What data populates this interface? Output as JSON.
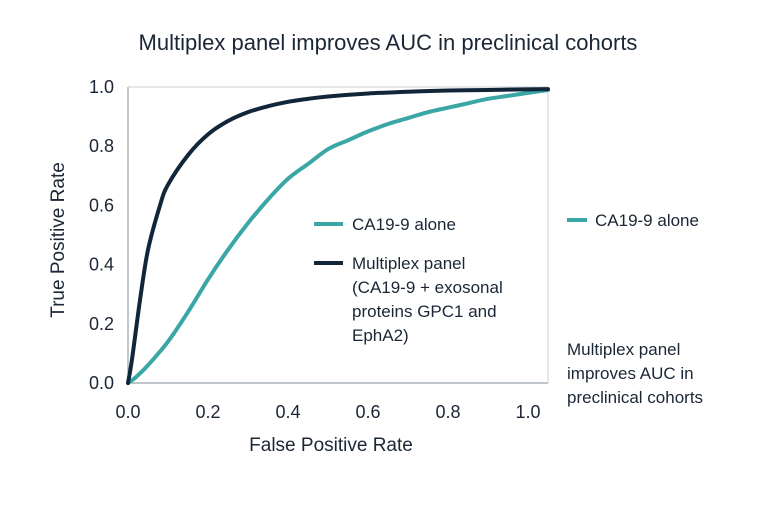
{
  "chart_data": {
    "type": "line",
    "title": "Multiplex panel improves AUC in preclinical cohorts",
    "xlabel": "False Positive Rate",
    "ylabel": "True Positive Rate",
    "xlim": [
      0,
      1.05
    ],
    "ylim": [
      0,
      1.0
    ],
    "x_ticks": [
      "0.0",
      "0.2",
      "0.4",
      "0.6",
      "0.8",
      "1.0"
    ],
    "y_ticks": [
      "0.0",
      "0.2",
      "0.4",
      "0.6",
      "0.8",
      "1.0"
    ],
    "grid": false,
    "legend": {
      "placement": "center",
      "entries": [
        {
          "label": "CA19-9 alone",
          "color": "#3aa6a6"
        },
        {
          "label_lines": [
            "Multiplex panel",
            "(CA19-9 + exosonal",
            "proteins GPC1 and",
            "EphA2)"
          ],
          "color": "#12263a"
        }
      ]
    },
    "side_legend": {
      "label": "CA19-9 alone",
      "color": "#3aa6a6"
    },
    "side_note_lines": [
      "Multiplex panel",
      "improves AUC in",
      "preclinical cohorts"
    ],
    "series": [
      {
        "name": "CA19-9 alone",
        "color": "#3aa6a6",
        "x": [
          0,
          0.02,
          0.05,
          0.1,
          0.15,
          0.2,
          0.25,
          0.3,
          0.35,
          0.4,
          0.45,
          0.5,
          0.55,
          0.6,
          0.65,
          0.7,
          0.75,
          0.8,
          0.85,
          0.9,
          0.95,
          1.0,
          1.05
        ],
        "y": [
          0,
          0.02,
          0.06,
          0.14,
          0.24,
          0.35,
          0.45,
          0.54,
          0.62,
          0.69,
          0.74,
          0.79,
          0.82,
          0.85,
          0.875,
          0.895,
          0.915,
          0.93,
          0.945,
          0.96,
          0.97,
          0.98,
          0.99
        ]
      },
      {
        "name": "Multiplex panel",
        "color": "#12263a",
        "x": [
          0,
          0.01,
          0.03,
          0.05,
          0.08,
          0.1,
          0.15,
          0.2,
          0.25,
          0.3,
          0.35,
          0.4,
          0.45,
          0.5,
          0.6,
          0.7,
          0.8,
          0.9,
          1.0,
          1.05
        ],
        "y": [
          0,
          0.08,
          0.28,
          0.45,
          0.6,
          0.67,
          0.77,
          0.84,
          0.885,
          0.915,
          0.935,
          0.95,
          0.96,
          0.968,
          0.978,
          0.984,
          0.988,
          0.99,
          0.992,
          0.993
        ]
      }
    ]
  }
}
